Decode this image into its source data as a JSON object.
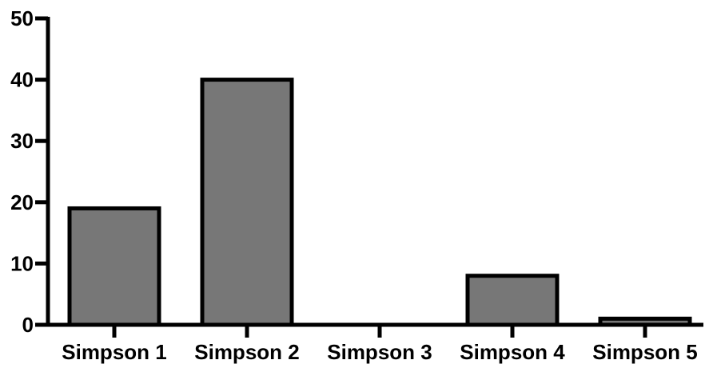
{
  "chart_data": {
    "type": "bar",
    "categories": [
      "Simpson 1",
      "Simpson 2",
      "Simpson 3",
      "Simpson 4",
      "Simpson 5"
    ],
    "values": [
      19,
      40,
      0,
      8,
      1
    ],
    "title": "",
    "xlabel": "",
    "ylabel": "",
    "ylim": [
      0,
      50
    ],
    "yticks": [
      0,
      10,
      20,
      30,
      40,
      50
    ],
    "grid": false,
    "legend": "none",
    "bar_color": "#777777",
    "edge_color": "#000000"
  }
}
